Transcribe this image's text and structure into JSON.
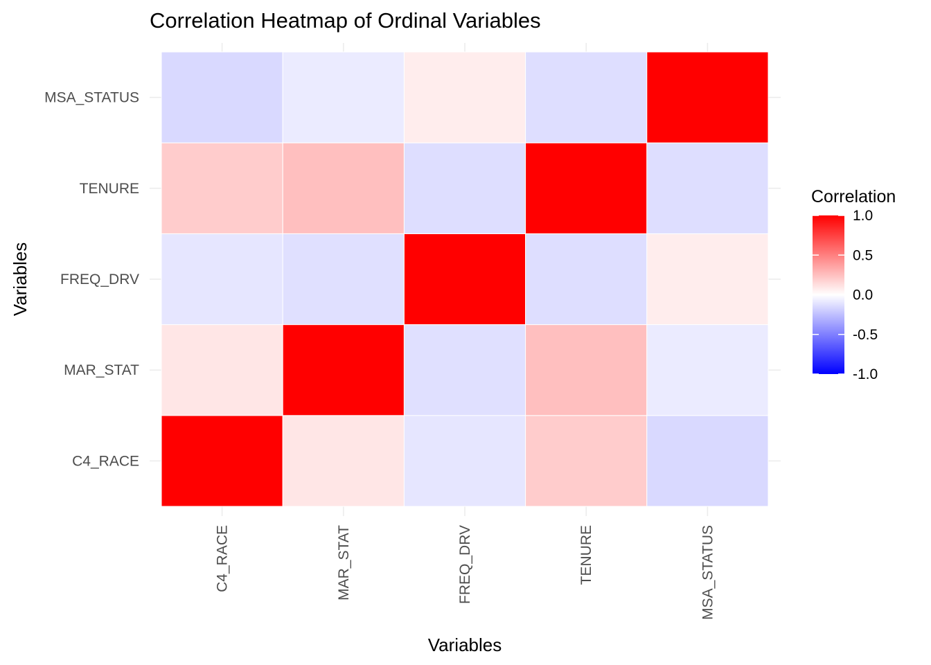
{
  "chart_data": {
    "type": "heatmap",
    "title": "Correlation Heatmap of Ordinal Variables",
    "xlabel": "Variables",
    "ylabel": "Variables",
    "x_categories": [
      "C4_RACE",
      "MAR_STAT",
      "FREQ_DRV",
      "TENURE",
      "MSA_STATUS"
    ],
    "y_categories": [
      "C4_RACE",
      "MAR_STAT",
      "FREQ_DRV",
      "TENURE",
      "MSA_STATUS"
    ],
    "matrix": [
      [
        1.0,
        0.1,
        -0.1,
        0.2,
        -0.15
      ],
      [
        0.1,
        1.0,
        -0.12,
        0.25,
        -0.08
      ],
      [
        -0.1,
        -0.12,
        1.0,
        -0.13,
        0.07
      ],
      [
        0.2,
        0.25,
        -0.13,
        1.0,
        -0.13
      ],
      [
        -0.15,
        -0.08,
        0.07,
        -0.13,
        1.0
      ]
    ],
    "color_scale": {
      "low": "#0000ff",
      "mid": "#ffffff",
      "high": "#ff0000",
      "limits": [
        -1,
        1
      ]
    },
    "legend": {
      "title": "Correlation",
      "position": "right",
      "breaks": [
        1.0,
        0.5,
        0.0,
        -0.5,
        -1.0
      ],
      "labels": [
        "1.0",
        "0.5",
        "0.0",
        "-0.5",
        "-1.0"
      ]
    },
    "grid": true
  }
}
